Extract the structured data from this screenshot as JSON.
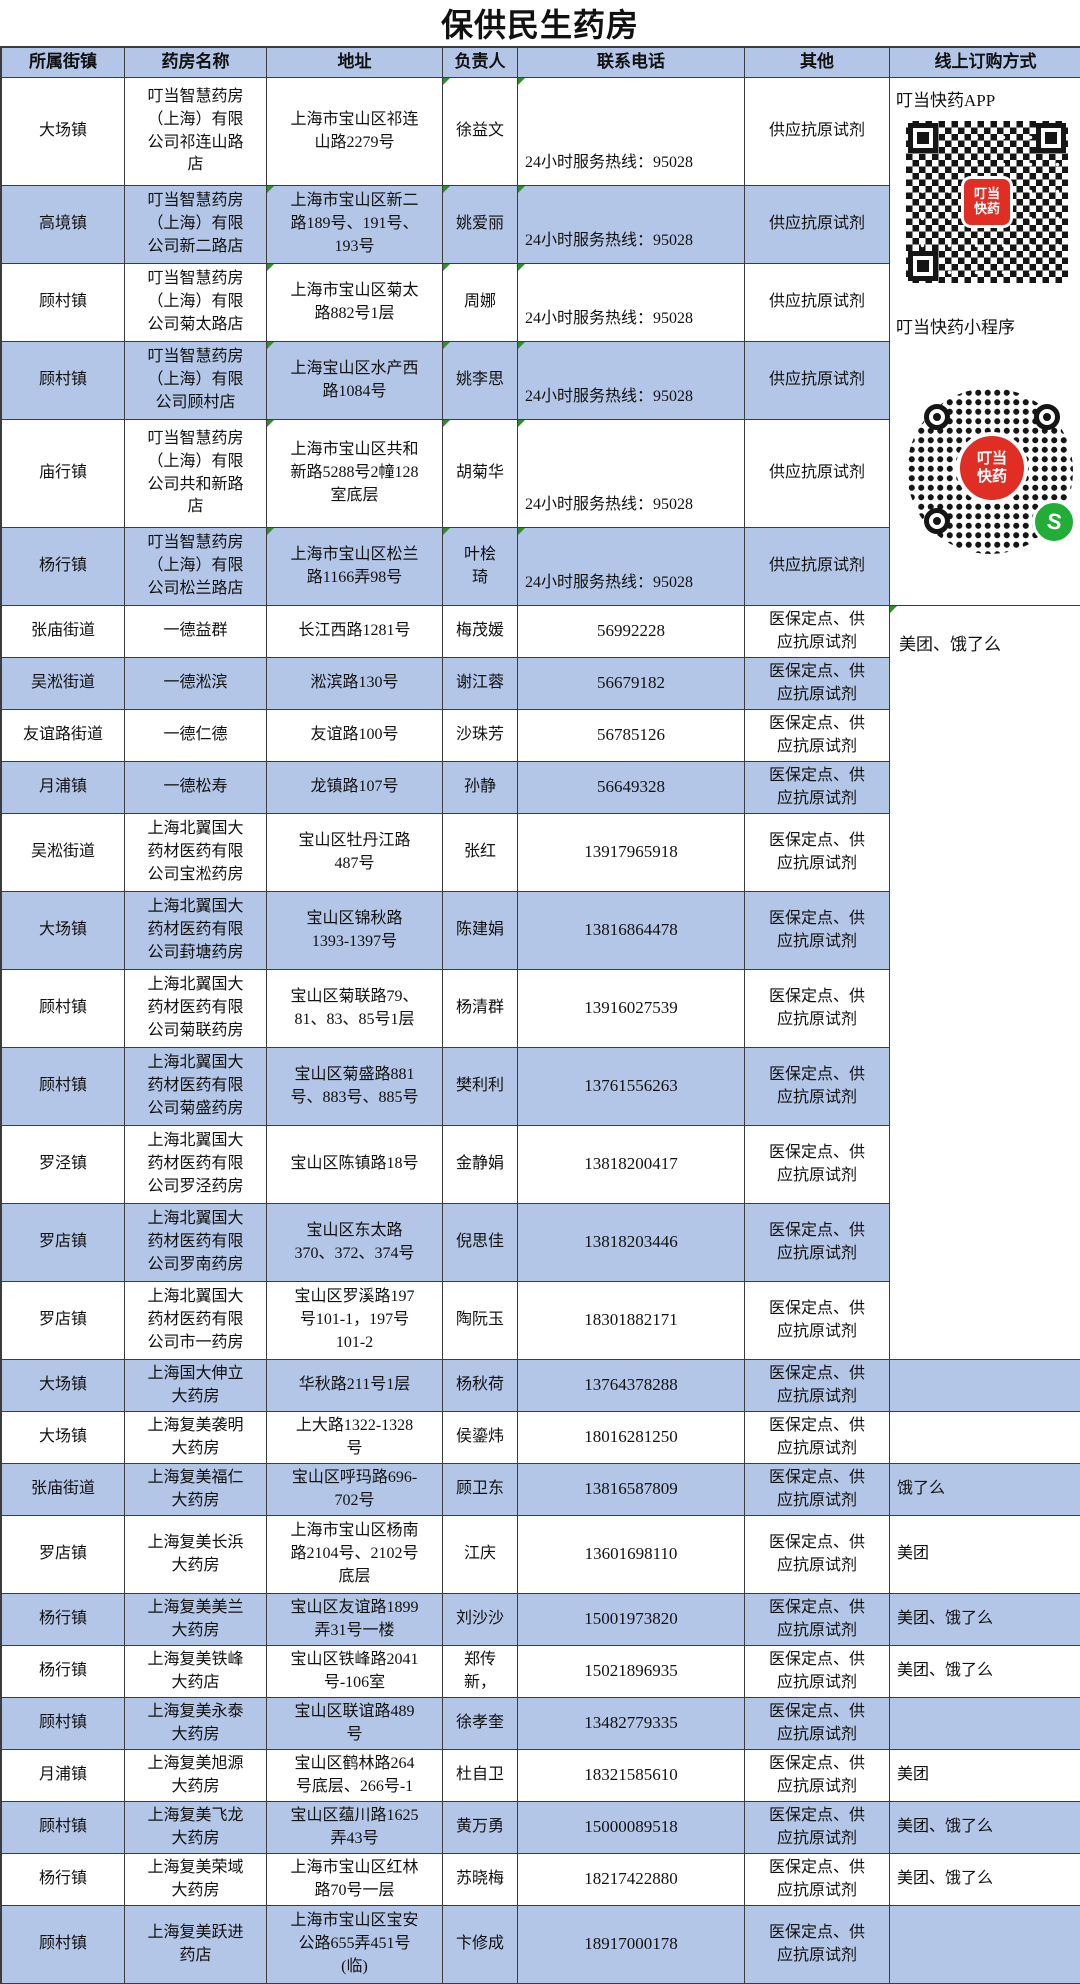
{
  "title": "保供民生药房",
  "columns": [
    "所属街镇",
    "药房名称",
    "地址",
    "负责人",
    "联系电话",
    "其他",
    "线上订购方式"
  ],
  "colors": {
    "row_blue": "#b4c6e7",
    "border": "#3c3c3c",
    "logo_red": "#e02e24",
    "wechat_green": "#22ac38",
    "flag_green": "#2f8f2f"
  },
  "online_panel": {
    "app_label": "叮当快药APP",
    "miniprogram_label": "叮当快药小程序",
    "logo_line1": "叮当",
    "logo_line2": "快药",
    "merged_online_text": "美团、饿了么"
  },
  "rows": [
    {
      "street": "大场镇",
      "name": "叮当智慧药房（上海）有限公司祁连山路店",
      "address": "上海市宝山区祁连山路2279号",
      "manager": "徐益文",
      "phone": "24小时服务热线：95028",
      "other": "供应抗原试剂",
      "online": null,
      "shade": "w",
      "marks": [
        "manager",
        "phone"
      ]
    },
    {
      "street": "高境镇",
      "name": "叮当智慧药房（上海）有限公司新二路店",
      "address": "上海市宝山区新二路189号、191号、193号",
      "manager": "姚爱丽",
      "phone": "24小时服务热线：95028",
      "other": "供应抗原试剂",
      "online": null,
      "shade": "b",
      "marks": [
        "address",
        "manager",
        "phone"
      ]
    },
    {
      "street": "顾村镇",
      "name": "叮当智慧药房（上海）有限公司菊太路店",
      "address": "上海市宝山区菊太路882号1层",
      "manager": "周娜",
      "phone": "24小时服务热线：95028",
      "other": "供应抗原试剂",
      "online": null,
      "shade": "w",
      "marks": [
        "address",
        "manager",
        "phone"
      ]
    },
    {
      "street": "顾村镇",
      "name": "叮当智慧药房（上海）有限公司顾村店",
      "address": "上海宝山区水产西路1084号",
      "manager": "姚李思",
      "phone": "24小时服务热线：95028",
      "other": "供应抗原试剂",
      "online": null,
      "shade": "b",
      "marks": [
        "address",
        "manager",
        "phone"
      ]
    },
    {
      "street": "庙行镇",
      "name": "叮当智慧药房（上海）有限公司共和新路店",
      "address": "上海市宝山区共和新路5288号2幢128室底层",
      "manager": "胡菊华",
      "phone": "24小时服务热线：95028",
      "other": "供应抗原试剂",
      "online": null,
      "shade": "w",
      "marks": [
        "address",
        "manager",
        "phone"
      ]
    },
    {
      "street": "杨行镇",
      "name": "叮当智慧药房（上海）有限公司松兰路店",
      "address": "上海市宝山区松兰路1166弄98号",
      "manager": "叶桧\n琦",
      "phone": "24小时服务热线：95028",
      "other": "供应抗原试剂",
      "online": null,
      "shade": "b",
      "marks": [
        "address",
        "manager",
        "phone"
      ]
    },
    {
      "street": "张庙街道",
      "name": "一德益群",
      "address": "长江西路1281号",
      "manager": "梅茂媛",
      "phone": "56992228",
      "other": "医保定点、供应抗原试剂",
      "online": null,
      "shade": "w",
      "marks": []
    },
    {
      "street": "吴淞街道",
      "name": "一德淞滨",
      "address": "淞滨路130号",
      "manager": "谢江蓉",
      "phone": "56679182",
      "other": "医保定点、供应抗原试剂",
      "online": null,
      "shade": "b",
      "marks": []
    },
    {
      "street": "友谊路街道",
      "name": "一德仁德",
      "address": "友谊路100号",
      "manager": "沙珠芳",
      "phone": "56785126",
      "other": "医保定点、供应抗原试剂",
      "online": null,
      "shade": "w",
      "marks": []
    },
    {
      "street": "月浦镇",
      "name": "一德松寿",
      "address": "龙镇路107号",
      "manager": "孙静",
      "phone": "56649328",
      "other": "医保定点、供应抗原试剂",
      "online": null,
      "shade": "b",
      "marks": []
    },
    {
      "street": "吴淞街道",
      "name": "上海北翼国大药材医药有限公司宝淞药房",
      "address": "宝山区牡丹江路487号",
      "manager": "张红",
      "phone": "13917965918",
      "other": "医保定点、供应抗原试剂",
      "online": null,
      "shade": "w",
      "marks": []
    },
    {
      "street": "大场镇",
      "name": "上海北翼国大药材医药有限公司葑塘药房",
      "address": "宝山区锦秋路1393-1397号",
      "manager": "陈建娟",
      "phone": "13816864478",
      "other": "医保定点、供应抗原试剂",
      "online": null,
      "shade": "b",
      "marks": []
    },
    {
      "street": "顾村镇",
      "name": "上海北翼国大药材医药有限公司菊联药房",
      "address": "宝山区菊联路79、81、83、85号1层",
      "manager": "杨清群",
      "phone": "13916027539",
      "other": "医保定点、供应抗原试剂",
      "online": null,
      "shade": "w",
      "marks": []
    },
    {
      "street": "顾村镇",
      "name": "上海北翼国大药材医药有限公司菊盛药房",
      "address": "宝山区菊盛路881号、883号、885号",
      "manager": "樊利利",
      "phone": "13761556263",
      "other": "医保定点、供应抗原试剂",
      "online": null,
      "shade": "b",
      "marks": []
    },
    {
      "street": "罗泾镇",
      "name": "上海北翼国大药材医药有限公司罗泾药房",
      "address": "宝山区陈镇路18号",
      "manager": "金静娟",
      "phone": "13818200417",
      "other": "医保定点、供应抗原试剂",
      "online": null,
      "shade": "w",
      "marks": []
    },
    {
      "street": "罗店镇",
      "name": "上海北翼国大药材医药有限公司罗南药房",
      "address": "宝山区东太路370、372、374号",
      "manager": "倪思佳",
      "phone": "13818203446",
      "other": "医保定点、供应抗原试剂",
      "online": null,
      "shade": "b",
      "marks": []
    },
    {
      "street": "罗店镇",
      "name": "上海北翼国大药材医药有限公司市一药房",
      "address": "宝山区罗溪路197号101-1，197号101-2",
      "manager": "陶阮玉",
      "phone": "18301882171",
      "other": "医保定点、供应抗原试剂",
      "online": null,
      "shade": "w",
      "marks": []
    },
    {
      "street": "大场镇",
      "name": "上海国大伸立大药房",
      "address": "华秋路211号1层",
      "manager": "杨秋荷",
      "phone": "13764378288",
      "other": "医保定点、供应抗原试剂",
      "online": "",
      "shade": "b",
      "marks": []
    },
    {
      "street": "大场镇",
      "name": "上海复美袭明大药房",
      "address": "上大路1322-1328号",
      "manager": "侯鎏炜",
      "phone": "18016281250",
      "other": "医保定点、供应抗原试剂",
      "online": "",
      "shade": "w",
      "marks": []
    },
    {
      "street": "张庙街道",
      "name": "上海复美福仁大药房",
      "address": "宝山区呼玛路696-702号",
      "manager": "顾卫东",
      "phone": "13816587809",
      "other": "医保定点、供应抗原试剂",
      "online": "饿了么",
      "shade": "b",
      "marks": []
    },
    {
      "street": "罗店镇",
      "name": "上海复美长浜大药房",
      "address": "上海市宝山区杨南路2104号、2102号底层",
      "manager": "江庆",
      "phone": "13601698110",
      "other": "医保定点、供应抗原试剂",
      "online": "美团",
      "shade": "w",
      "marks": []
    },
    {
      "street": "杨行镇",
      "name": "上海复美美兰大药房",
      "address": "宝山区友谊路1899弄31号一楼",
      "manager": "刘沙沙",
      "phone": "15001973820",
      "other": "医保定点、供应抗原试剂",
      "online": "美团、饿了么",
      "shade": "b",
      "marks": []
    },
    {
      "street": "杨行镇",
      "name": "上海复美铁峰大药店",
      "address": "宝山区铁峰路2041号-106室",
      "manager": "郑传\n新，",
      "phone": "15021896935",
      "other": "医保定点、供应抗原试剂",
      "online": "美团、饿了么",
      "shade": "w",
      "marks": []
    },
    {
      "street": "顾村镇",
      "name": "上海复美永泰大药房",
      "address": "宝山区联谊路489号",
      "manager": "徐孝奎",
      "phone": "13482779335",
      "other": "医保定点、供应抗原试剂",
      "online": "",
      "shade": "b",
      "marks": []
    },
    {
      "street": "月浦镇",
      "name": "上海复美旭源大药房",
      "address": "宝山区鹤林路264号底层、266号-1",
      "manager": "杜自卫",
      "phone": "18321585610",
      "other": "医保定点、供应抗原试剂",
      "online": "美团",
      "shade": "w",
      "marks": []
    },
    {
      "street": "顾村镇",
      "name": "上海复美飞龙大药房",
      "address": "宝山区蕴川路1625弄43号",
      "manager": "黄万勇",
      "phone": "15000089518",
      "other": "医保定点、供应抗原试剂",
      "online": "美团、饿了么",
      "shade": "b",
      "marks": []
    },
    {
      "street": "杨行镇",
      "name": "上海复美荣域大药房",
      "address": "上海市宝山区红林路70号一层",
      "manager": "苏晓梅",
      "phone": "18217422880",
      "other": "医保定点、供应抗原试剂",
      "online": "美团、饿了么",
      "shade": "w",
      "marks": []
    },
    {
      "street": "顾村镇",
      "name": "上海复美跃进药店",
      "address": "上海市宝山区宝安公路655弄451号(临)",
      "manager": "卞修成",
      "phone": "18917000178",
      "other": "医保定点、供应抗原试剂",
      "online": "",
      "shade": "b",
      "marks": []
    }
  ]
}
